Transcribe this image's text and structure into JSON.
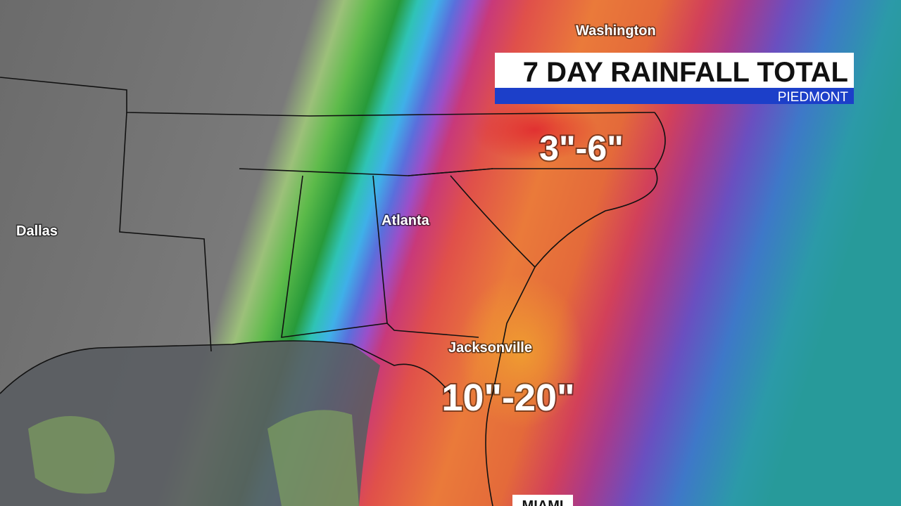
{
  "header": {
    "title": "7 DAY RAINFALL TOTAL",
    "subtitle": "PIEDMONT"
  },
  "cities": [
    "Washington",
    "Atlanta",
    "Dallas",
    "Jacksonville",
    "MIAMI"
  ],
  "rainfall_labels": [
    "3\"-6\"",
    "10\"-20\""
  ]
}
